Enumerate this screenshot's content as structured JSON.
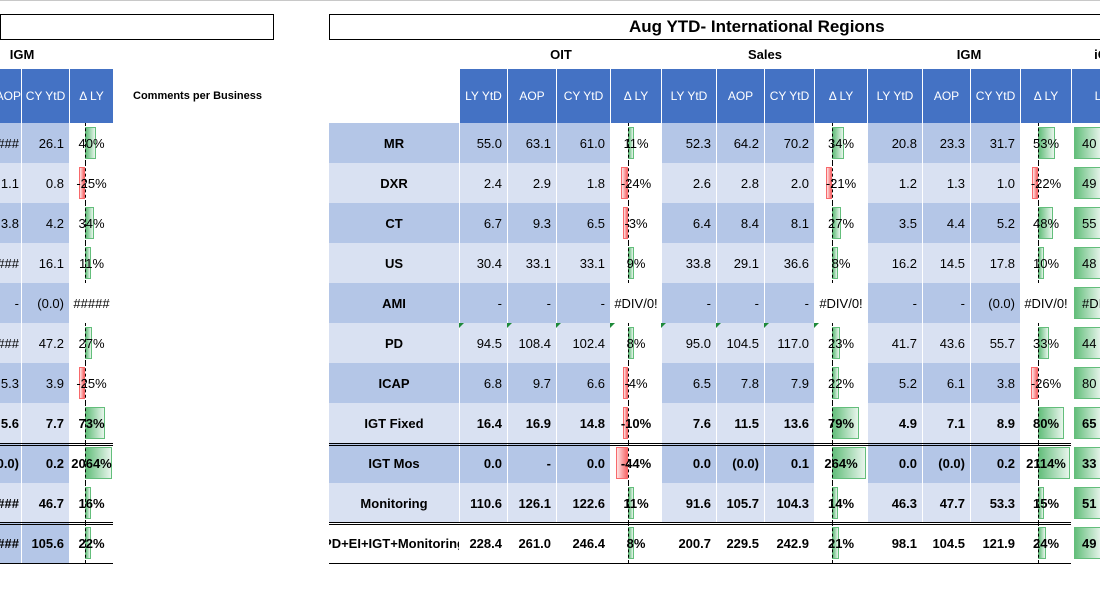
{
  "title": "Aug YTD- International Regions",
  "comments_label": "Comments per Business",
  "groups": {
    "left_igm": "IGM",
    "oit": "OIT",
    "sales": "Sales",
    "igm": "IGM",
    "partial": "iG"
  },
  "left_headers": [
    "AOP",
    "CY YtD",
    "Δ LY"
  ],
  "main_headers": [
    "LY YtD",
    "AOP",
    "CY YtD",
    "Δ LY",
    "LY YtD",
    "AOP",
    "CY YtD",
    "Δ LY",
    "LY YtD",
    "AOP",
    "CY YtD",
    "Δ LY",
    "LY"
  ],
  "left_rows": [
    {
      "aop": "####",
      "cy": "26.1",
      "delta": "40%",
      "pct": 40
    },
    {
      "aop": "1.1",
      "cy": "0.8",
      "delta": "-25%",
      "pct": -25
    },
    {
      "aop": "3.8",
      "cy": "4.2",
      "delta": "34%",
      "pct": 34
    },
    {
      "aop": "####",
      "cy": "16.1",
      "delta": "11%",
      "pct": 11
    },
    {
      "aop": "-",
      "cy": "(0.0)",
      "delta": "#####",
      "pct": 0
    },
    {
      "aop": "####",
      "cy": "47.2",
      "delta": "27%",
      "pct": 27
    },
    {
      "aop": "5.3",
      "cy": "3.9",
      "delta": "-25%",
      "pct": -25
    },
    {
      "aop": "5.6",
      "cy": "7.7",
      "delta": "73%",
      "pct": 73
    },
    {
      "aop": "(0.0)",
      "cy": "0.2",
      "delta": "2064%",
      "pct": 2064
    },
    {
      "aop": "####",
      "cy": "46.7",
      "delta": "16%",
      "pct": 16
    },
    {
      "aop": "####",
      "cy": "105.6",
      "delta": "22%",
      "pct": 22
    }
  ],
  "rows": [
    {
      "label": "MR",
      "oit": [
        "55.0",
        "63.1",
        "61.0"
      ],
      "oit_d": "11%",
      "oit_p": 11,
      "sales": [
        "52.3",
        "64.2",
        "70.2"
      ],
      "sales_d": "34%",
      "sales_p": 34,
      "igm": [
        "20.8",
        "23.3",
        "31.7"
      ],
      "igm_d": "53%",
      "igm_p": 53,
      "next": "40"
    },
    {
      "label": "DXR",
      "oit": [
        "2.4",
        "2.9",
        "1.8"
      ],
      "oit_d": "-24%",
      "oit_p": -24,
      "sales": [
        "2.6",
        "2.8",
        "2.0"
      ],
      "sales_d": "-21%",
      "sales_p": -21,
      "igm": [
        "1.2",
        "1.3",
        "1.0"
      ],
      "igm_d": "-22%",
      "igm_p": -22,
      "next": "49"
    },
    {
      "label": "CT",
      "oit": [
        "6.7",
        "9.3",
        "6.5"
      ],
      "oit_d": "-3%",
      "oit_p": -3,
      "sales": [
        "6.4",
        "8.4",
        "8.1"
      ],
      "sales_d": "27%",
      "sales_p": 27,
      "igm": [
        "3.5",
        "4.4",
        "5.2"
      ],
      "igm_d": "48%",
      "igm_p": 48,
      "next": "55"
    },
    {
      "label": "US",
      "oit": [
        "30.4",
        "33.1",
        "33.1"
      ],
      "oit_d": "9%",
      "oit_p": 9,
      "sales": [
        "33.8",
        "29.1",
        "36.6"
      ],
      "sales_d": "8%",
      "sales_p": 8,
      "igm": [
        "16.2",
        "14.5",
        "17.8"
      ],
      "igm_d": "10%",
      "igm_p": 10,
      "next": "48"
    },
    {
      "label": "AMI",
      "oit": [
        "-",
        "-",
        "-"
      ],
      "oit_d": "#DIV/0!",
      "oit_p": 0,
      "sales": [
        "-",
        "-",
        "-"
      ],
      "sales_d": "#DIV/0!",
      "sales_p": 0,
      "igm": [
        "-",
        "-",
        "(0.0)"
      ],
      "igm_d": "#DIV/0!",
      "igm_p": 0,
      "next": "#DI"
    },
    {
      "label": "PD",
      "oit": [
        "94.5",
        "108.4",
        "102.4"
      ],
      "oit_d": "8%",
      "oit_p": 8,
      "sales": [
        "95.0",
        "104.5",
        "117.0"
      ],
      "sales_d": "23%",
      "sales_p": 23,
      "igm": [
        "41.7",
        "43.6",
        "55.7"
      ],
      "igm_d": "33%",
      "igm_p": 33,
      "next": "44"
    },
    {
      "label": "ICAP",
      "oit": [
        "6.8",
        "9.7",
        "6.6"
      ],
      "oit_d": "-4%",
      "oit_p": -4,
      "sales": [
        "6.5",
        "7.8",
        "7.9"
      ],
      "sales_d": "22%",
      "sales_p": 22,
      "igm": [
        "5.2",
        "6.1",
        "3.8"
      ],
      "igm_d": "-26%",
      "igm_p": -26,
      "next": "80"
    },
    {
      "label": "IGT Fixed",
      "oit": [
        "16.4",
        "16.9",
        "14.8"
      ],
      "oit_d": "-10%",
      "oit_p": -10,
      "sales": [
        "7.6",
        "11.5",
        "13.6"
      ],
      "sales_d": "79%",
      "sales_p": 79,
      "igm": [
        "4.9",
        "7.1",
        "8.9"
      ],
      "igm_d": "80%",
      "igm_p": 80,
      "next": "65"
    },
    {
      "label": "IGT Mos",
      "oit": [
        "0.0",
        "-",
        "0.0"
      ],
      "oit_d": "-44%",
      "oit_p": -44,
      "sales": [
        "0.0",
        "(0.0)",
        "0.1"
      ],
      "sales_d": "264%",
      "sales_p": 264,
      "igm": [
        "0.0",
        "(0.0)",
        "0.2"
      ],
      "igm_d": "2114%",
      "igm_p": 2114,
      "next": "33"
    },
    {
      "label": "Monitoring",
      "oit": [
        "110.6",
        "126.1",
        "122.6"
      ],
      "oit_d": "11%",
      "oit_p": 11,
      "sales": [
        "91.6",
        "105.7",
        "104.3"
      ],
      "sales_d": "14%",
      "sales_p": 14,
      "igm": [
        "46.3",
        "47.7",
        "53.3"
      ],
      "igm_d": "15%",
      "igm_p": 15,
      "next": "51"
    },
    {
      "label": "PD+EI+IGT+Monitoring",
      "oit": [
        "228.4",
        "261.0",
        "246.4"
      ],
      "oit_d": "8%",
      "oit_p": 8,
      "sales": [
        "200.7",
        "229.5",
        "242.9"
      ],
      "sales_d": "21%",
      "sales_p": 21,
      "igm": [
        "98.1",
        "104.5",
        "121.9"
      ],
      "igm_d": "24%",
      "igm_p": 24,
      "next": "49"
    }
  ],
  "colors": {
    "header_blue": "#4472c4",
    "row_dark": "#b4c6e7",
    "row_light": "#d9e1f2",
    "pos_bar": "#63be7b",
    "neg_bar": "#f8696b"
  }
}
